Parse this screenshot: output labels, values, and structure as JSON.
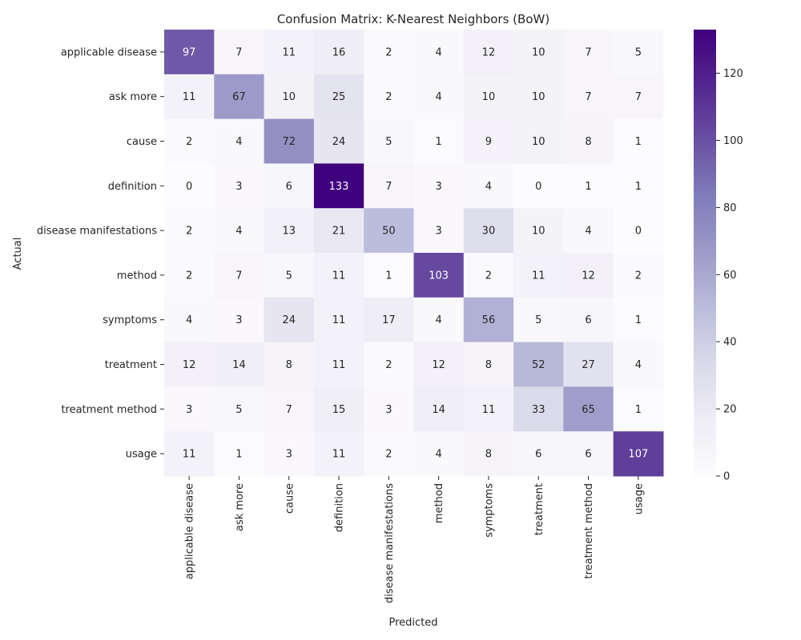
{
  "chart_data": {
    "type": "heatmap",
    "title": "Confusion Matrix: K-Nearest Neighbors (BoW)",
    "xlabel": "Predicted",
    "ylabel": "Actual",
    "x_categories": [
      "applicable disease",
      "ask more",
      "cause",
      "definition",
      "disease manifestations",
      "method",
      "symptoms",
      "treatment",
      "treatment method",
      "usage"
    ],
    "y_categories": [
      "applicable disease",
      "ask more",
      "cause",
      "definition",
      "disease manifestations",
      "method",
      "symptoms",
      "treatment",
      "treatment method",
      "usage"
    ],
    "values": [
      [
        97,
        7,
        11,
        16,
        2,
        4,
        12,
        10,
        7,
        5
      ],
      [
        11,
        67,
        10,
        25,
        2,
        4,
        10,
        10,
        7,
        7
      ],
      [
        2,
        4,
        72,
        24,
        5,
        1,
        9,
        10,
        8,
        1
      ],
      [
        0,
        3,
        6,
        133,
        7,
        3,
        4,
        0,
        1,
        1
      ],
      [
        2,
        4,
        13,
        21,
        50,
        3,
        30,
        10,
        4,
        0
      ],
      [
        2,
        7,
        5,
        11,
        1,
        103,
        2,
        11,
        12,
        2
      ],
      [
        4,
        3,
        24,
        11,
        17,
        4,
        56,
        5,
        6,
        1
      ],
      [
        12,
        14,
        8,
        11,
        2,
        12,
        8,
        52,
        27,
        4
      ],
      [
        3,
        5,
        7,
        15,
        3,
        14,
        11,
        33,
        65,
        1
      ],
      [
        11,
        1,
        3,
        11,
        2,
        4,
        8,
        6,
        6,
        107
      ]
    ],
    "colorbar": {
      "min": 0,
      "max": 133,
      "ticks": [
        0,
        20,
        40,
        60,
        80,
        100,
        120
      ],
      "colormap": "Purples",
      "low_color": "#fcfbfd",
      "high_color": "#3f007d"
    },
    "annotation_colors": {
      "light_cells": "#262626",
      "dark_cells": "#ffffff"
    }
  }
}
